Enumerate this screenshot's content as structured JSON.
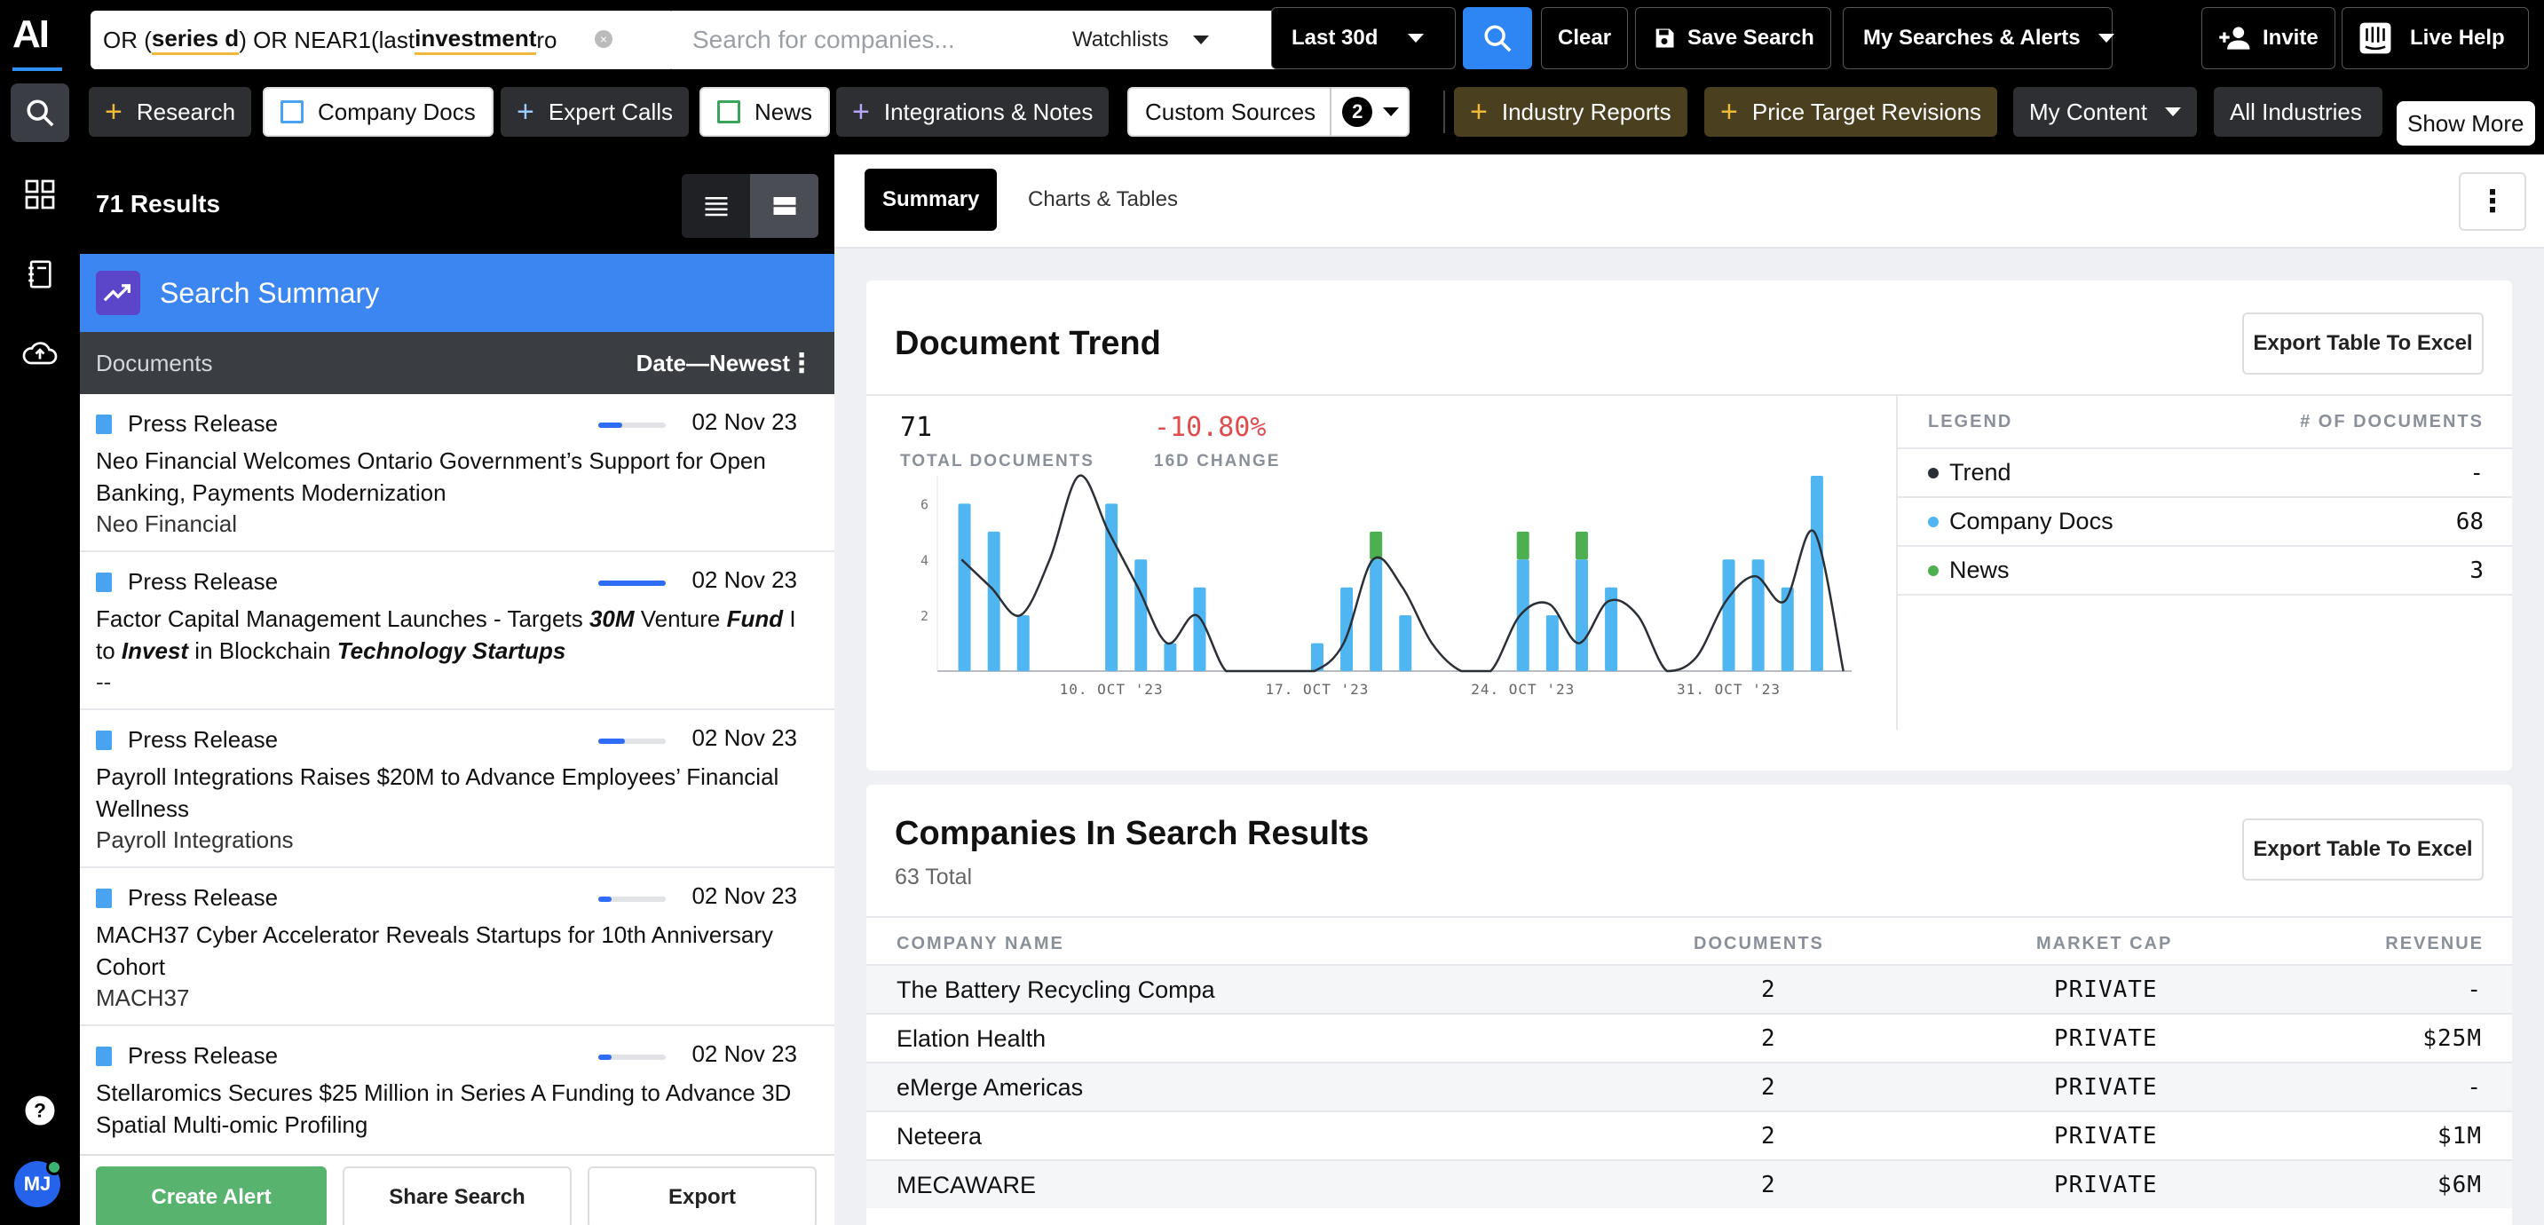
{
  "rail": {
    "logo": "AI",
    "avatar_initials": "MJ"
  },
  "topbar": {
    "query_parts": [
      "OR (",
      "series d",
      ") OR NEAR1(last ",
      "investment",
      " ro"
    ],
    "search_placeholder": "Search for companies...",
    "watchlists_label": "Watchlists",
    "date_range": "Last 30d",
    "clear_label": "Clear",
    "save_search_label": "Save Search",
    "my_searches_label": "My Searches & Alerts",
    "invite_label": "Invite",
    "live_help_label": "Live Help"
  },
  "tabs": {
    "research": "Research",
    "company_docs": "Company Docs",
    "expert_calls": "Expert Calls",
    "news": "News",
    "integrations": "Integrations & Notes",
    "custom_sources": "Custom Sources",
    "custom_sources_count": "2",
    "industry_reports": "Industry Reports",
    "price_target": "Price Target Revisions",
    "my_content": "My Content",
    "all_industries": "All Industries",
    "show_more": "Show More"
  },
  "left": {
    "results_label": "71 Results",
    "summary_label": "Search Summary",
    "docs_label": "Documents",
    "sort_label": "Date—Newest",
    "documents": [
      {
        "type": "Press Release",
        "date": "02 Nov 23",
        "relevance": 0.35,
        "title": "Neo Financial Welcomes Ontario Government’s Support for Open Banking, Payments Modernization",
        "source": "Neo Financial"
      },
      {
        "type": "Press Release",
        "date": "02 Nov 23",
        "relevance": 1.0,
        "title_html": "Factor Capital Management Launches - Targets <b><i>30M</i></b> Venture <b><i>Fund</i></b> I to <b><i>Invest</i></b> in Blockchain <b><i>Technology Startups</i></b>",
        "source": "--"
      },
      {
        "type": "Press Release",
        "date": "02 Nov 23",
        "relevance": 0.4,
        "title": "Payroll Integrations Raises $20M to Advance Employees’ Financial Wellness",
        "source": "Payroll Integrations"
      },
      {
        "type": "Press Release",
        "date": "02 Nov 23",
        "relevance": 0.2,
        "title": "MACH37 Cyber Accelerator Reveals Startups for 10th Anniversary Cohort",
        "source": "MACH37"
      },
      {
        "type": "Press Release",
        "date": "02 Nov 23",
        "relevance": 0.2,
        "title": "Stellaromics Secures $25 Million in Series A Funding to Advance 3D Spatial Multi-omic Profiling",
        "source": ""
      }
    ],
    "create_alert": "Create Alert",
    "share_search": "Share Search",
    "export": "Export"
  },
  "main": {
    "tab_summary": "Summary",
    "tab_charts": "Charts & Tables",
    "trend_title": "Document Trend",
    "export_label": "Export Table To Excel",
    "total_docs": "71",
    "total_docs_label": "TOTAL DOCUMENTS",
    "change": "-10.80%",
    "change_label": "16D CHANGE",
    "legend_header": "LEGEND",
    "legend_count_header": "# OF DOCUMENTS",
    "legend": [
      {
        "name": "Trend",
        "count": "-",
        "color": "#2b2f36"
      },
      {
        "name": "Company Docs",
        "count": "68",
        "color": "#4fb6f2"
      },
      {
        "name": "News",
        "count": "3",
        "color": "#4caf50"
      }
    ],
    "companies_title": "Companies In Search Results",
    "companies_total": "63 Total",
    "col_company": "COMPANY NAME",
    "col_documents": "DOCUMENTS",
    "col_market_cap": "MARKET CAP",
    "col_revenue": "REVENUE",
    "companies": [
      {
        "name": "The Battery Recycling Compa",
        "documents": "2",
        "market_cap": "PRIVATE",
        "revenue": "-"
      },
      {
        "name": "Elation Health",
        "documents": "2",
        "market_cap": "PRIVATE",
        "revenue": "$25M"
      },
      {
        "name": "eMerge Americas",
        "documents": "2",
        "market_cap": "PRIVATE",
        "revenue": "-"
      },
      {
        "name": "Neteera",
        "documents": "2",
        "market_cap": "PRIVATE",
        "revenue": "$1M"
      },
      {
        "name": "MECAWARE",
        "documents": "2",
        "market_cap": "PRIVATE",
        "revenue": "$6M"
      }
    ]
  },
  "chart_data": {
    "type": "bar",
    "title": "Document Trend",
    "ylim": [
      0,
      7
    ],
    "yticks": [
      2,
      4,
      6
    ],
    "xtick_labels": [
      "10. Oct '23",
      "17. Oct '23",
      "24. Oct '23",
      "31. Oct '23"
    ],
    "xtick_index": [
      5,
      12,
      19,
      26
    ],
    "series": [
      {
        "name": "Company Docs",
        "values": [
          6,
          5,
          2,
          0,
          0,
          6,
          4,
          1,
          3,
          0,
          0,
          0,
          1,
          3,
          4,
          2,
          0,
          0,
          0,
          4,
          2,
          4,
          3,
          0,
          0,
          0,
          4,
          4,
          3,
          7
        ]
      },
      {
        "name": "News",
        "values": [
          0,
          0,
          0,
          0,
          0,
          0,
          0,
          0,
          0,
          0,
          0,
          0,
          0,
          0,
          1,
          0,
          0,
          0,
          0,
          1,
          0,
          1,
          0,
          0,
          0,
          0,
          0,
          0,
          0,
          0
        ]
      }
    ],
    "trend": [
      4,
      3,
      2,
      4,
      7,
      5,
      3,
      1,
      2,
      0,
      0,
      0,
      0,
      1,
      4,
      3,
      1,
      0,
      0,
      2,
      2.4,
      1,
      2.5,
      2,
      0,
      0.5,
      2.5,
      3.4,
      2.5,
      5,
      0
    ]
  }
}
